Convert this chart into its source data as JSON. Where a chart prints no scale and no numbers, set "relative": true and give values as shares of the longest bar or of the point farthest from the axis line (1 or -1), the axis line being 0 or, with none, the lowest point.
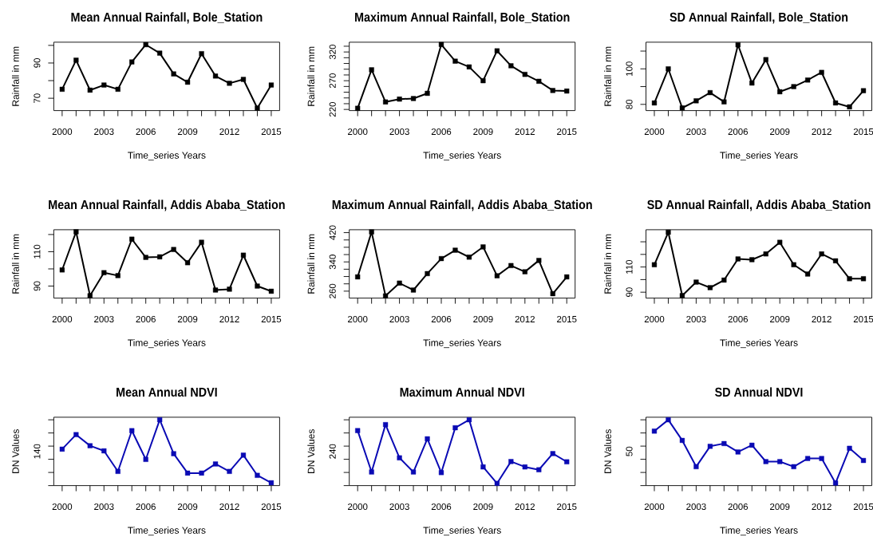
{
  "chart_data": [
    {
      "type": "line",
      "title": "Mean Annual Rainfall, Bole_Station",
      "xlabel": "Time_series Years",
      "ylabel": "Rainfall in mm",
      "x": [
        2000,
        2001,
        2002,
        2003,
        2004,
        2005,
        2006,
        2007,
        2008,
        2009,
        2010,
        2011,
        2012,
        2013,
        2014,
        2015
      ],
      "xlim": [
        1999.4,
        2015.6
      ],
      "xticks": [
        2000,
        {
          "value": 2001,
          "label": null
        },
        {
          "value": 2002,
          "label": null
        },
        2003,
        {
          "value": 2004,
          "label": null
        },
        {
          "value": 2005,
          "label": null
        },
        2006,
        {
          "value": 2007,
          "label": null
        },
        {
          "value": 2008,
          "label": null
        },
        2009,
        {
          "value": 2010,
          "label": null
        },
        {
          "value": 2011,
          "label": null
        },
        2012,
        {
          "value": 2013,
          "label": null
        },
        {
          "value": 2014,
          "label": null
        },
        2015
      ],
      "ylim": [
        63,
        101.8
      ],
      "yticks": [
        70,
        {
          "value": 80,
          "label": null
        },
        90,
        {
          "value": 100,
          "label": null
        }
      ],
      "marker": "square",
      "line_style": "solid",
      "series": [
        {
          "color": "#000000",
          "values": [
            75.1,
            91.6,
            74.6,
            77.5,
            75.1,
            90.6,
            100.4,
            95.6,
            83.8,
            79.1,
            95.3,
            82.6,
            78.5,
            80.7,
            64.4,
            77.5
          ]
        }
      ]
    },
    {
      "type": "line",
      "title": "Maximum Annual Rainfall, Bole_Station",
      "xlabel": "Time_series Years",
      "ylabel": "Rainfall in mm",
      "x": [
        2000,
        2001,
        2002,
        2003,
        2004,
        2005,
        2006,
        2007,
        2008,
        2009,
        2010,
        2011,
        2012,
        2013,
        2014,
        2015
      ],
      "xlim": [
        1999.4,
        2015.6
      ],
      "xticks": [
        2000,
        {
          "value": 2001,
          "label": null
        },
        {
          "value": 2002,
          "label": null
        },
        2003,
        {
          "value": 2004,
          "label": null
        },
        {
          "value": 2005,
          "label": null
        },
        2006,
        {
          "value": 2007,
          "label": null
        },
        {
          "value": 2008,
          "label": null
        },
        2009,
        {
          "value": 2010,
          "label": null
        },
        {
          "value": 2011,
          "label": null
        },
        2012,
        {
          "value": 2013,
          "label": null
        },
        {
          "value": 2014,
          "label": null
        },
        2015
      ],
      "ylim": [
        218,
        337
      ],
      "yticks": [
        220,
        {
          "value": 230,
          "label": null
        },
        {
          "value": 240,
          "label": null
        },
        {
          "value": 250,
          "label": null
        },
        {
          "value": 260,
          "label": null
        },
        270,
        {
          "value": 280,
          "label": null
        },
        {
          "value": 290,
          "label": null
        },
        {
          "value": 300,
          "label": null
        },
        {
          "value": 310,
          "label": null
        },
        320,
        {
          "value": 330,
          "label": null
        }
      ],
      "marker": "square",
      "line_style": "solid",
      "series": [
        {
          "color": "#000000",
          "values": [
            222,
            289,
            233,
            238,
            239,
            248,
            333,
            304,
            294,
            270,
            322,
            296,
            281,
            269,
            253,
            252
          ]
        }
      ]
    },
    {
      "type": "line",
      "title": "SD Annual Rainfall, Bole_Station",
      "xlabel": "Time_series Years",
      "ylabel": "Rainfall in mm",
      "x": [
        2000,
        2001,
        2002,
        2003,
        2004,
        2005,
        2006,
        2007,
        2008,
        2009,
        2010,
        2011,
        2012,
        2013,
        2014,
        2015
      ],
      "xlim": [
        1999.4,
        2015.6
      ],
      "xticks": [
        2000,
        {
          "value": 2001,
          "label": null
        },
        {
          "value": 2002,
          "label": null
        },
        2003,
        {
          "value": 2004,
          "label": null
        },
        {
          "value": 2005,
          "label": null
        },
        2006,
        {
          "value": 2007,
          "label": null
        },
        {
          "value": 2008,
          "label": null
        },
        2009,
        {
          "value": 2010,
          "label": null
        },
        {
          "value": 2011,
          "label": null
        },
        2012,
        {
          "value": 2013,
          "label": null
        },
        {
          "value": 2014,
          "label": null
        },
        2015
      ],
      "ylim": [
        76.5,
        115
      ],
      "yticks": [
        80,
        {
          "value": 90,
          "label": null
        },
        100,
        {
          "value": 110,
          "label": null
        }
      ],
      "marker": "square",
      "line_style": "solid",
      "series": [
        {
          "color": "#000000",
          "values": [
            80.8,
            100,
            78,
            82,
            86.6,
            81.4,
            113.5,
            92,
            105.2,
            87.1,
            90,
            93.7,
            98,
            80.8,
            78.6,
            87.7
          ]
        }
      ]
    },
    {
      "type": "line",
      "title": "Mean Annual Rainfall, Addis Ababa_Station",
      "xlabel": "Time_series Years",
      "ylabel": "Rainfall in mm",
      "x": [
        2000,
        2001,
        2002,
        2003,
        2004,
        2005,
        2006,
        2007,
        2008,
        2009,
        2010,
        2011,
        2012,
        2013,
        2014,
        2015
      ],
      "xlim": [
        1999.4,
        2015.6
      ],
      "xticks": [
        2000,
        {
          "value": 2001,
          "label": null
        },
        {
          "value": 2002,
          "label": null
        },
        2003,
        {
          "value": 2004,
          "label": null
        },
        {
          "value": 2005,
          "label": null
        },
        2006,
        {
          "value": 2007,
          "label": null
        },
        {
          "value": 2008,
          "label": null
        },
        2009,
        {
          "value": 2010,
          "label": null
        },
        {
          "value": 2011,
          "label": null
        },
        2012,
        {
          "value": 2013,
          "label": null
        },
        {
          "value": 2014,
          "label": null
        },
        2015
      ],
      "ylim": [
        83,
        122.8
      ],
      "yticks": [
        90,
        {
          "value": 100,
          "label": null
        },
        110,
        {
          "value": 120,
          "label": null
        }
      ],
      "marker": "square",
      "line_style": "solid",
      "series": [
        {
          "color": "#000000",
          "values": [
            99.4,
            121.6,
            84.4,
            97.8,
            96.1,
            117.3,
            106.7,
            107,
            111.3,
            103.6,
            115.5,
            87.7,
            88.2,
            108,
            90,
            87
          ]
        }
      ]
    },
    {
      "type": "line",
      "title": "Maximum Annual Rainfall, Addis Ababa_Station",
      "xlabel": "Time_series Years",
      "ylabel": "Rainfall in mm",
      "x": [
        2000,
        2001,
        2002,
        2003,
        2004,
        2005,
        2006,
        2007,
        2008,
        2009,
        2010,
        2011,
        2012,
        2013,
        2014,
        2015
      ],
      "xlim": [
        1999.4,
        2015.6
      ],
      "xticks": [
        2000,
        {
          "value": 2001,
          "label": null
        },
        {
          "value": 2002,
          "label": null
        },
        2003,
        {
          "value": 2004,
          "label": null
        },
        {
          "value": 2005,
          "label": null
        },
        2006,
        {
          "value": 2007,
          "label": null
        },
        {
          "value": 2008,
          "label": null
        },
        2009,
        {
          "value": 2010,
          "label": null
        },
        {
          "value": 2011,
          "label": null
        },
        2012,
        {
          "value": 2013,
          "label": null
        },
        {
          "value": 2014,
          "label": null
        },
        2015
      ],
      "ylim": [
        241,
        428
      ],
      "yticks": [
        260,
        {
          "value": 280,
          "label": null
        },
        {
          "value": 300,
          "label": null
        },
        {
          "value": 320,
          "label": null
        },
        340,
        {
          "value": 360,
          "label": null
        },
        {
          "value": 380,
          "label": null
        },
        {
          "value": 400,
          "label": null
        },
        420
      ],
      "marker": "square",
      "line_style": "solid",
      "series": [
        {
          "color": "#000000",
          "values": [
            299,
            422,
            247,
            282,
            263,
            308,
            349,
            372,
            353,
            381,
            302,
            330,
            313,
            344,
            253,
            299
          ]
        }
      ]
    },
    {
      "type": "line",
      "title": "SD Annual Rainfall, Addis Ababa_Station",
      "xlabel": "Time_series Years",
      "ylabel": "Rainfall in mm",
      "x": [
        2000,
        2001,
        2002,
        2003,
        2004,
        2005,
        2006,
        2007,
        2008,
        2009,
        2010,
        2011,
        2012,
        2013,
        2014,
        2015
      ],
      "xlim": [
        1999.4,
        2015.6
      ],
      "xticks": [
        2000,
        {
          "value": 2001,
          "label": null
        },
        {
          "value": 2002,
          "label": null
        },
        2003,
        {
          "value": 2004,
          "label": null
        },
        {
          "value": 2005,
          "label": null
        },
        2006,
        {
          "value": 2007,
          "label": null
        },
        {
          "value": 2008,
          "label": null
        },
        2009,
        {
          "value": 2010,
          "label": null
        },
        {
          "value": 2011,
          "label": null
        },
        2012,
        {
          "value": 2013,
          "label": null
        },
        {
          "value": 2014,
          "label": null
        },
        2015
      ],
      "ylim": [
        85.3,
        139.6
      ],
      "yticks": [
        90,
        {
          "value": 100,
          "label": null
        },
        110,
        {
          "value": 120,
          "label": null
        },
        {
          "value": 130,
          "label": null
        }
      ],
      "marker": "square",
      "line_style": "solid",
      "series": [
        {
          "color": "#000000",
          "values": [
            111.8,
            137.6,
            87.3,
            98,
            93.6,
            99.6,
            116.4,
            115.8,
            120.4,
            129.6,
            111.8,
            104.4,
            120.4,
            114.9,
            100.7,
            100.7
          ]
        }
      ]
    },
    {
      "type": "line",
      "title": "Mean Annual NDVI",
      "xlabel": "Time_series Years",
      "ylabel": "DN Values",
      "x": [
        2000,
        2001,
        2002,
        2003,
        2004,
        2005,
        2006,
        2007,
        2008,
        2009,
        2010,
        2011,
        2012,
        2013,
        2014,
        2015
      ],
      "xlim": [
        1999.4,
        2015.6
      ],
      "xticks": [
        2000,
        {
          "value": 2001,
          "label": null
        },
        {
          "value": 2002,
          "label": null
        },
        2003,
        {
          "value": 2004,
          "label": null
        },
        {
          "value": 2005,
          "label": null
        },
        2006,
        {
          "value": 2007,
          "label": null
        },
        {
          "value": 2008,
          "label": null
        },
        2009,
        {
          "value": 2010,
          "label": null
        },
        {
          "value": 2011,
          "label": null
        },
        2012,
        {
          "value": 2013,
          "label": null
        },
        {
          "value": 2014,
          "label": null
        },
        2015
      ],
      "relative": true,
      "annotations": [
        "140"
      ],
      "marker": "square",
      "line_style": "solid",
      "series": [
        {
          "color": "#0a0ab4",
          "values": [
            0.554,
            0.775,
            0.606,
            0.528,
            0.216,
            0.835,
            0.398,
            1.0,
            0.485,
            0.19,
            0.19,
            0.329,
            0.216,
            0.463,
            0.156,
            0.043
          ]
        }
      ]
    },
    {
      "type": "line",
      "title": "Maximum Annual NDVI",
      "xlabel": "Time_series Years",
      "ylabel": "DN Values",
      "x": [
        2000,
        2001,
        2002,
        2003,
        2004,
        2005,
        2006,
        2007,
        2008,
        2009,
        2010,
        2011,
        2012,
        2013,
        2014,
        2015
      ],
      "xlim": [
        1999.4,
        2015.6
      ],
      "xticks": [
        2000,
        {
          "value": 2001,
          "label": null
        },
        {
          "value": 2002,
          "label": null
        },
        2003,
        {
          "value": 2004,
          "label": null
        },
        {
          "value": 2005,
          "label": null
        },
        2006,
        {
          "value": 2007,
          "label": null
        },
        {
          "value": 2008,
          "label": null
        },
        2009,
        {
          "value": 2010,
          "label": null
        },
        {
          "value": 2011,
          "label": null
        },
        2012,
        {
          "value": 2013,
          "label": null
        },
        {
          "value": 2014,
          "label": null
        },
        2015
      ],
      "relative": true,
      "annotations": [
        "240"
      ],
      "marker": "square",
      "line_style": "solid",
      "series": [
        {
          "color": "#0a0ab4",
          "values": [
            0.836,
            0.207,
            0.927,
            0.422,
            0.207,
            0.711,
            0.198,
            0.879,
            1.0,
            0.284,
            0.034,
            0.366,
            0.284,
            0.241,
            0.487,
            0.362
          ]
        }
      ]
    },
    {
      "type": "line",
      "title": "SD Annual NDVI",
      "xlabel": "Time_series Years",
      "ylabel": "DN Values",
      "x": [
        2000,
        2001,
        2002,
        2003,
        2004,
        2005,
        2006,
        2007,
        2008,
        2009,
        2010,
        2011,
        2012,
        2013,
        2014,
        2015
      ],
      "xlim": [
        1999.4,
        2015.6
      ],
      "xticks": [
        2000,
        {
          "value": 2001,
          "label": null
        },
        {
          "value": 2002,
          "label": null
        },
        2003,
        {
          "value": 2004,
          "label": null
        },
        {
          "value": 2005,
          "label": null
        },
        2006,
        {
          "value": 2007,
          "label": null
        },
        {
          "value": 2008,
          "label": null
        },
        2009,
        {
          "value": 2010,
          "label": null
        },
        {
          "value": 2011,
          "label": null
        },
        2012,
        {
          "value": 2013,
          "label": null
        },
        {
          "value": 2014,
          "label": null
        },
        2015
      ],
      "relative": true,
      "annotations": [
        "50"
      ],
      "marker": "square",
      "line_style": "solid",
      "series": [
        {
          "color": "#0a0ab4",
          "values": [
            0.828,
            1.0,
            0.687,
            0.288,
            0.597,
            0.639,
            0.511,
            0.614,
            0.365,
            0.365,
            0.288,
            0.412,
            0.412,
            0.039,
            0.567,
            0.382
          ]
        }
      ]
    }
  ]
}
